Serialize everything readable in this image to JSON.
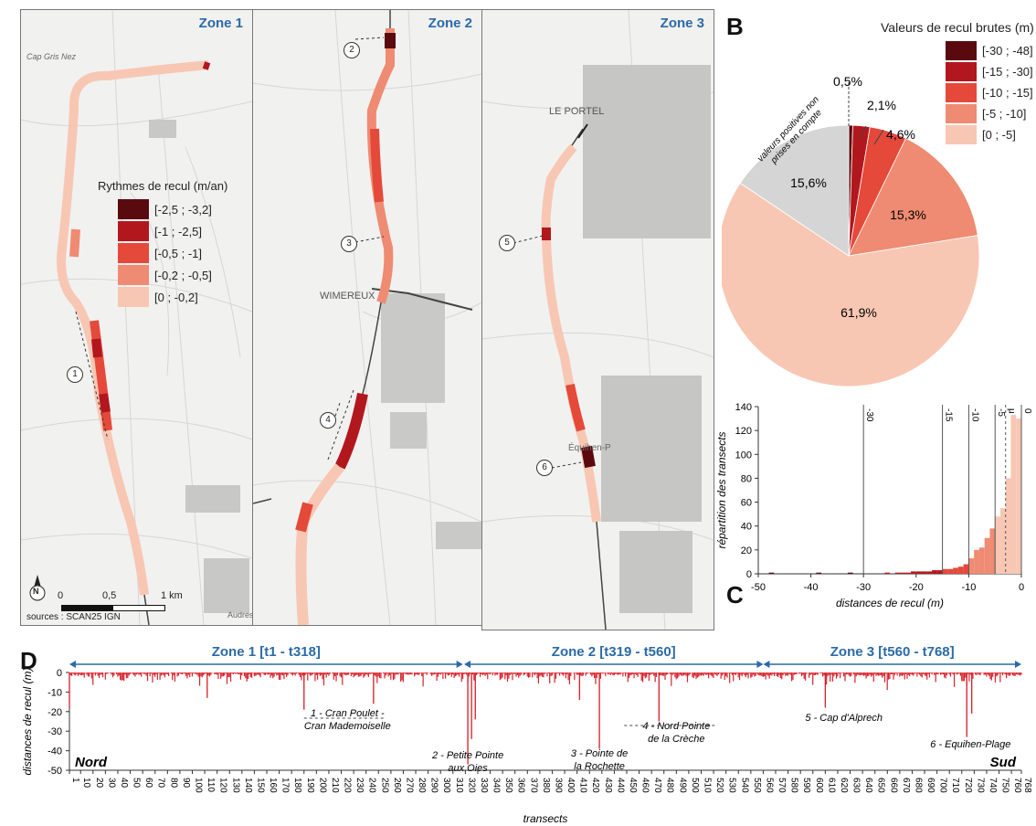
{
  "panels": {
    "a": "A",
    "b": "B",
    "c": "C",
    "d": "D"
  },
  "zones": [
    "Zone 1",
    "Zone 2",
    "Zone 3"
  ],
  "map_labels": {
    "cap_gris_nez": "Cap Gris Nez",
    "le_portel": "LE PORTEL",
    "wimereux": "WIMEREUX",
    "equihen": "Équihen-P",
    "audresselles": "Audres"
  },
  "legend_a": {
    "title": "Rythmes de recul (m/an)",
    "items": [
      {
        "label": "[-2,5 ; -3,2]",
        "color": "#5a0a0f"
      },
      {
        "label": "[-1 ; -2,5]",
        "color": "#b3171e"
      },
      {
        "label": "[-0,5 ; -1]",
        "color": "#e4493a"
      },
      {
        "label": "[-0,2 ; -0,5]",
        "color": "#ef8b72"
      },
      {
        "label": "[0 ; -0,2]",
        "color": "#f8c7b3"
      }
    ]
  },
  "scale_bar": {
    "labels": [
      "0",
      "0,5",
      "1 km"
    ],
    "north": "N",
    "sources": "sources : SCAN25 IGN"
  },
  "callouts": [
    "1",
    "2",
    "3",
    "4",
    "5",
    "6"
  ],
  "legend_b": {
    "title": "Valeurs de recul brutes (m)",
    "items": [
      {
        "label": "[-30 ; -48]",
        "color": "#5a0a0f"
      },
      {
        "label": "[-15 ; -30]",
        "color": "#b3171e"
      },
      {
        "label": "[-10 ; -15]",
        "color": "#e4493a"
      },
      {
        "label": "[-5 ; -10]",
        "color": "#ef8b72"
      },
      {
        "label": "[0 ; -5]",
        "color": "#f8c7b3"
      }
    ]
  },
  "pie": {
    "note": "valeurs positives non prises en compte",
    "slices": [
      {
        "label": "0,5%",
        "value": 0.5,
        "color": "#5a0a0f"
      },
      {
        "label": "2,1%",
        "value": 2.1,
        "color": "#b3171e"
      },
      {
        "label": "4,6%",
        "value": 4.6,
        "color": "#e4493a"
      },
      {
        "label": "15,3%",
        "value": 15.3,
        "color": "#ef8b72"
      },
      {
        "label": "61,9%",
        "value": 61.9,
        "color": "#f8c7b3"
      },
      {
        "label": "15,6%",
        "value": 15.6,
        "color": "#d5d5d6"
      }
    ]
  },
  "chart_data": [
    {
      "type": "bar",
      "title": "",
      "xlabel": "distances de recul (m)",
      "ylabel": "répartition des transects",
      "xlim": [
        -50,
        0
      ],
      "ylim": [
        0,
        140
      ],
      "xticks": [
        -50,
        -40,
        -30,
        -20,
        -10,
        0
      ],
      "yticks": [
        0,
        20,
        40,
        60,
        80,
        100,
        120,
        140
      ],
      "reference_lines": [
        {
          "x": -30,
          "label": "-30"
        },
        {
          "x": -15,
          "label": "-15"
        },
        {
          "x": -10,
          "label": "-10"
        },
        {
          "x": -5,
          "label": "-5"
        },
        {
          "x": -3,
          "label": "μ",
          "dashed": true
        },
        {
          "x": 0,
          "label": "0"
        }
      ],
      "bin_width": 1,
      "bin_centers": [
        -47.5,
        -38.5,
        -32.5,
        -25.5,
        -23.5,
        -22.5,
        -21.5,
        -20.5,
        -19.5,
        -18.5,
        -17.5,
        -16.5,
        -15.5,
        -14.5,
        -13.5,
        -12.5,
        -11.5,
        -10.5,
        -9.5,
        -8.5,
        -7.5,
        -6.5,
        -5.5,
        -4.5,
        -3.5,
        -2.5,
        -1.5,
        -0.5
      ],
      "values": [
        1,
        1,
        1,
        1,
        1,
        1,
        1,
        2,
        2,
        2,
        2,
        3,
        3,
        4,
        4,
        5,
        6,
        8,
        13,
        20,
        22,
        30,
        38,
        48,
        55,
        80,
        133,
        130
      ]
    },
    {
      "type": "bar",
      "title": "",
      "xlabel": "transects",
      "ylabel": "distances de recul (m)",
      "xlim": [
        1,
        768
      ],
      "ylim": [
        -50,
        0
      ],
      "yticks": [
        0,
        -10,
        -20,
        -30,
        -40,
        -50
      ],
      "xticks": [
        1,
        10,
        20,
        30,
        40,
        50,
        60,
        70,
        80,
        90,
        100,
        110,
        120,
        130,
        140,
        150,
        160,
        170,
        180,
        190,
        200,
        210,
        220,
        230,
        240,
        250,
        260,
        270,
        280,
        290,
        300,
        310,
        320,
        330,
        340,
        350,
        360,
        370,
        380,
        390,
        400,
        410,
        420,
        430,
        440,
        450,
        460,
        470,
        480,
        490,
        500,
        510,
        520,
        530,
        540,
        550,
        560,
        570,
        580,
        590,
        600,
        610,
        620,
        630,
        640,
        650,
        660,
        670,
        680,
        690,
        700,
        710,
        720,
        730,
        740,
        750,
        760,
        768
      ],
      "zones": [
        {
          "label": "Zone 1 [t1 - t318]",
          "from": 1,
          "to": 318
        },
        {
          "label": "Zone 2 [t319 - t560]",
          "from": 319,
          "to": 560
        },
        {
          "label": "Zone 3 [t560 - t768]",
          "from": 560,
          "to": 768
        }
      ],
      "peaks": [
        {
          "x": 1,
          "y": -18
        },
        {
          "x": 112,
          "y": -13
        },
        {
          "x": 190,
          "y": -19
        },
        {
          "x": 246,
          "y": -16
        },
        {
          "x": 322,
          "y": -47
        },
        {
          "x": 325,
          "y": -34
        },
        {
          "x": 328,
          "y": -24
        },
        {
          "x": 412,
          "y": -14
        },
        {
          "x": 428,
          "y": -39
        },
        {
          "x": 476,
          "y": -25
        },
        {
          "x": 610,
          "y": -18
        },
        {
          "x": 724,
          "y": -33
        },
        {
          "x": 728,
          "y": -21
        }
      ],
      "annotations": [
        {
          "x": 225,
          "text": "1 - Cran Poulet -\nCran Mademoiselle"
        },
        {
          "x": 322,
          "text": "2 - Petite Pointe\naux Oies"
        },
        {
          "x": 428,
          "text": "3 - Pointe de\nla Rochette"
        },
        {
          "x": 490,
          "text": "4 - Nord Pointe\nde la Crèche"
        },
        {
          "x": 625,
          "text": "5 - Cap d'Alprech"
        },
        {
          "x": 727,
          "text": "6 - Equihen-Plage"
        }
      ],
      "end_labels": {
        "left": "Nord",
        "right": "Sud"
      }
    }
  ]
}
